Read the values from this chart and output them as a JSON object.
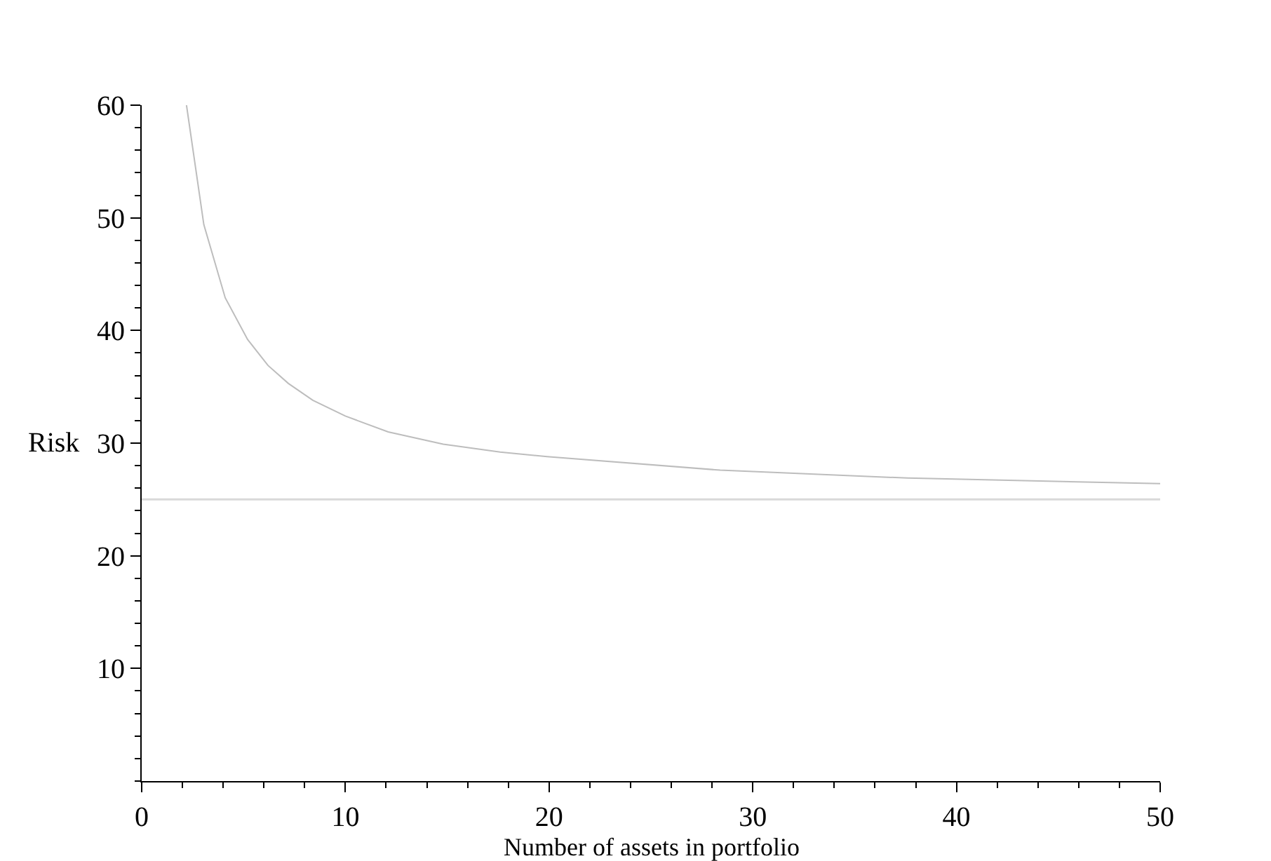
{
  "chart_data": {
    "type": "line",
    "xlabel": "Number of assets in portfolio",
    "ylabel": "Risk",
    "xlim": [
      0,
      50
    ],
    "ylim": [
      0,
      60
    ],
    "xticks": [
      0,
      10,
      20,
      30,
      40,
      50
    ],
    "yticks": [
      10,
      20,
      30,
      40,
      50,
      60
    ],
    "grid": false,
    "marker": "none",
    "line_style": "solid",
    "series": [
      {
        "color": "#bdbdbd",
        "x": [
          2.2,
          3.05,
          4.1,
          5.2,
          6.2,
          7.2,
          8.4,
          10,
          12.1,
          14.8,
          17.6,
          19.9,
          28.4,
          37.6,
          50
        ],
        "values": [
          60,
          49.4,
          42.9,
          39.2,
          36.9,
          35.3,
          33.8,
          32.4,
          31,
          29.9,
          29.2,
          28.8,
          27.6,
          26.9,
          26.4
        ]
      }
    ],
    "ref_lines": [
      {
        "axis": "y",
        "value": 25,
        "color": "#d9d9d9"
      }
    ]
  }
}
